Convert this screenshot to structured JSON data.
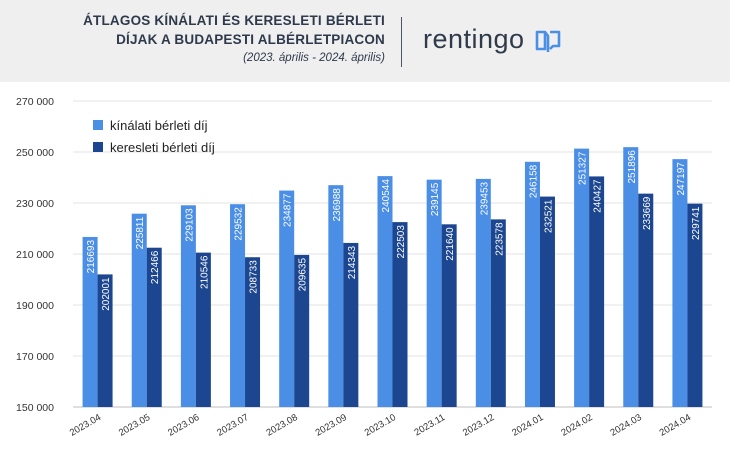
{
  "header": {
    "title_line1": "ÁTLAGOS KÍNÁLATI ÉS KERESLETI BÉRLETI",
    "title_line2": "DÍJAK A BUDAPESTI ALBÉRLETPIACON",
    "subtitle": "(2023. április - 2024. április)",
    "brand": "rentingo"
  },
  "chart_data": {
    "type": "bar",
    "categories": [
      "2023.04",
      "2023.05",
      "2023.06",
      "2023.07",
      "2023.08",
      "2023.09",
      "2023.10",
      "2023.11",
      "2023.12",
      "2024.01",
      "2024.02",
      "2024.03",
      "2024.04"
    ],
    "series": [
      {
        "name": "kínálati bérleti díj",
        "color": "#4a8ee6",
        "values": [
          216693,
          225811,
          229103,
          229532,
          234877,
          236988,
          240544,
          239145,
          239453,
          246158,
          251327,
          251896,
          247197
        ]
      },
      {
        "name": "keresleti bérleti díj",
        "color": "#1c4690",
        "values": [
          202001,
          212466,
          210546,
          208733,
          209635,
          214343,
          222503,
          221640,
          223578,
          232521,
          240427,
          233669,
          229741
        ]
      }
    ],
    "ylim": [
      150000,
      270000
    ],
    "yticks": [
      150000,
      170000,
      190000,
      210000,
      230000,
      250000,
      270000
    ],
    "ytick_labels": [
      "150 000",
      "170 000",
      "190 000",
      "210 000",
      "230 000",
      "250 000",
      "270 000"
    ],
    "grid": true,
    "legend_position": "top-left"
  }
}
